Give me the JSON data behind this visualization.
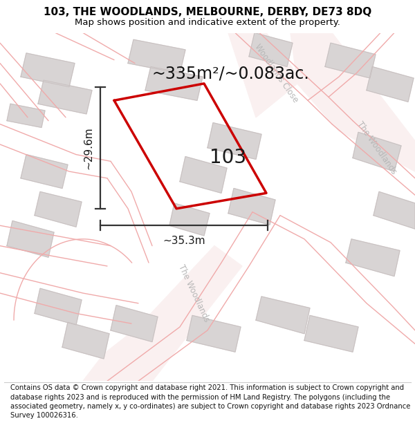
{
  "title": "103, THE WOODLANDS, MELBOURNE, DERBY, DE73 8DQ",
  "subtitle": "Map shows position and indicative extent of the property.",
  "footer": "Contains OS data © Crown copyright and database right 2021. This information is subject to Crown copyright and database rights 2023 and is reproduced with the permission of HM Land Registry. The polygons (including the associated geometry, namely x, y co-ordinates) are subject to Crown copyright and database rights 2023 Ordnance Survey 100026316.",
  "area_label": "~335m²/~0.083ac.",
  "property_label": "103",
  "dim_width": "~35.3m",
  "dim_height": "~29.6m",
  "property_color": "#cc0000",
  "map_bg": "#f9f6f6",
  "white_bg": "#ffffff",
  "title_fontsize": 11,
  "subtitle_fontsize": 9.5,
  "footer_fontsize": 7.2,
  "dim_color": "#333333",
  "road_label_color": "#b8b8b8",
  "building_fill": "#d8d4d4",
  "building_edge": "#c8c0c0",
  "road_line_color": "#f0aaaa",
  "road_fill_color": "#f5e8e8"
}
